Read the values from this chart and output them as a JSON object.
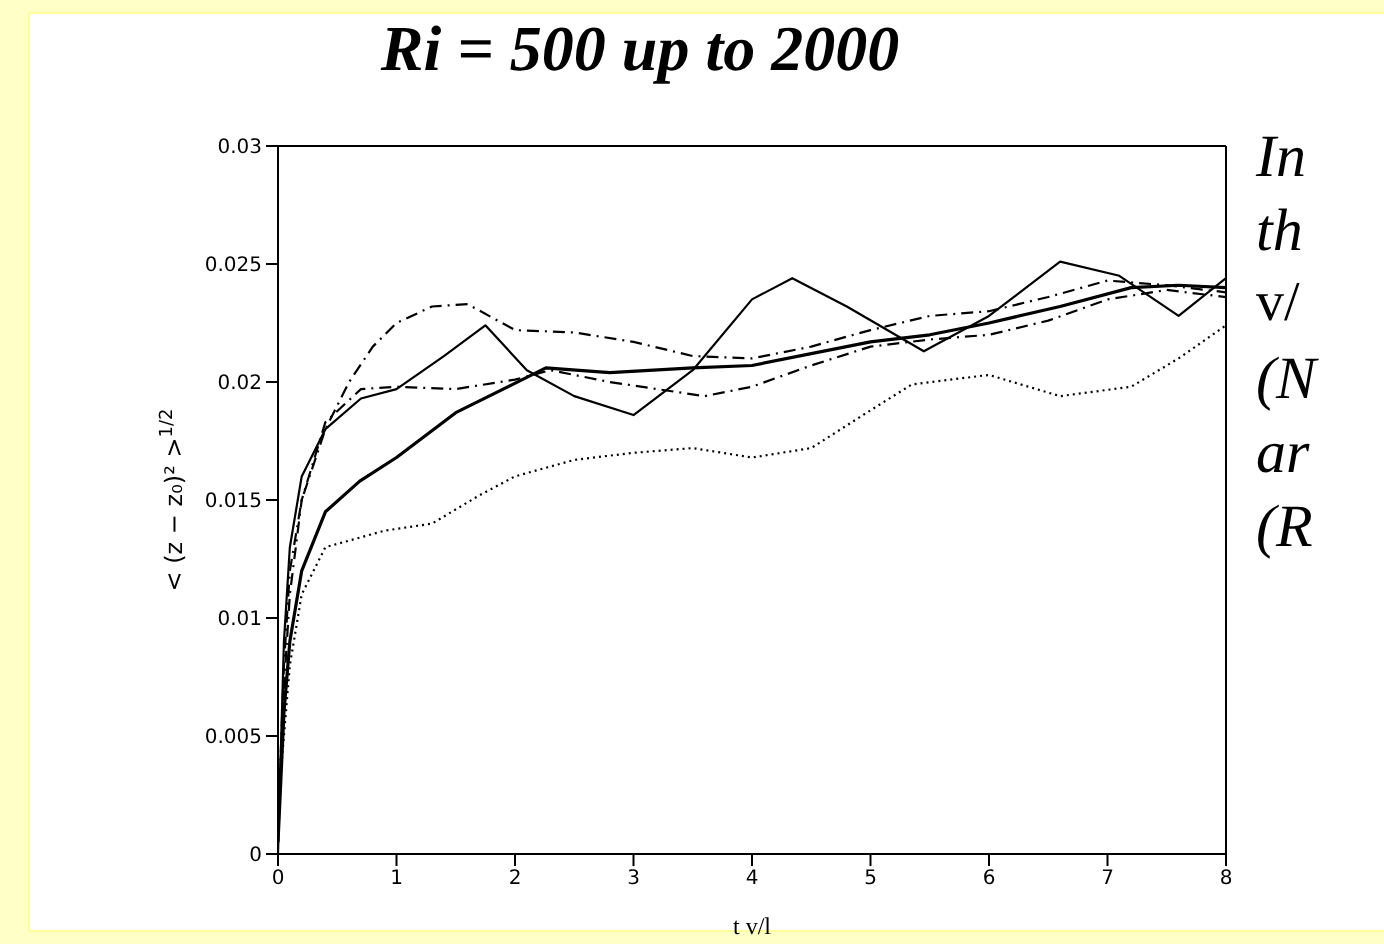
{
  "chart_data": {
    "type": "line",
    "title": "Ri = 500 up to 2000",
    "xlabel": "t v/l",
    "ylabel": "< (z − z₀)² >$^{1/2}$",
    "annotations": [
      "In",
      "th",
      "v/",
      "(N",
      "ar",
      "(R"
    ],
    "xlim": [
      0,
      8
    ],
    "xticks": [
      0,
      1,
      2,
      3,
      4,
      5,
      6,
      7,
      8
    ],
    "ylim": [
      0,
      0.03
    ],
    "yticks": [
      0,
      0.005,
      0.01,
      0.015,
      0.02,
      0.025,
      0.03
    ],
    "marker": "none",
    "series": [
      {
        "color": "#000000",
        "line_style": "dashed",
        "x": [
          0,
          0.05,
          0.1,
          0.2,
          0.4,
          0.6,
          0.8,
          1.0,
          1.3,
          1.6,
          2.0,
          2.5,
          3.0,
          3.5,
          4.0,
          4.5,
          5.0,
          5.5,
          6.0,
          6.5,
          7.0,
          7.5,
          8.0
        ],
        "values": [
          0.001,
          0.008,
          0.012,
          0.015,
          0.018,
          0.02,
          0.0215,
          0.0225,
          0.0232,
          0.0233,
          0.0222,
          0.0221,
          0.0217,
          0.0211,
          0.021,
          0.0215,
          0.0222,
          0.0228,
          0.023,
          0.0236,
          0.0243,
          0.0241,
          0.0238
        ]
      },
      {
        "color": "#000000",
        "line_style": "solid",
        "x": [
          0,
          0.05,
          0.1,
          0.2,
          0.4,
          0.7,
          1.0,
          1.4,
          1.75,
          2.1,
          2.5,
          3.0,
          3.5,
          4.0,
          4.34,
          4.8,
          5.45,
          6.0,
          6.6,
          7.1,
          7.6,
          8.0
        ],
        "values": [
          0,
          0.009,
          0.013,
          0.016,
          0.018,
          0.0193,
          0.0197,
          0.0211,
          0.0224,
          0.0205,
          0.0194,
          0.0186,
          0.0205,
          0.0235,
          0.0244,
          0.0232,
          0.0213,
          0.0228,
          0.0251,
          0.0245,
          0.0228,
          0.0244
        ]
      },
      {
        "color": "#000000",
        "line_style": "solid",
        "x": [
          0,
          0.05,
          0.1,
          0.2,
          0.4,
          0.69,
          1.0,
          1.5,
          2.26,
          2.8,
          3.5,
          4.0,
          4.5,
          5.0,
          5.5,
          6.0,
          6.6,
          7.2,
          7.6,
          8.0
        ],
        "values": [
          0.0005,
          0.006,
          0.009,
          0.012,
          0.0145,
          0.0158,
          0.0168,
          0.0187,
          0.0206,
          0.0204,
          0.0206,
          0.0207,
          0.0212,
          0.0217,
          0.022,
          0.0225,
          0.0232,
          0.024,
          0.0241,
          0.024
        ]
      },
      {
        "color": "#000000",
        "line_style": "dashed",
        "x": [
          0,
          0.05,
          0.1,
          0.2,
          0.4,
          0.7,
          1.0,
          1.5,
          2.0,
          2.3,
          2.8,
          3.2,
          3.6,
          4.0,
          4.5,
          5.0,
          5.5,
          6.0,
          6.5,
          7.0,
          7.5,
          8.0
        ],
        "values": [
          0.0015,
          0.007,
          0.011,
          0.015,
          0.0183,
          0.0197,
          0.0198,
          0.0197,
          0.0201,
          0.0205,
          0.02,
          0.0197,
          0.0194,
          0.0198,
          0.0207,
          0.0215,
          0.0218,
          0.022,
          0.0226,
          0.0235,
          0.0239,
          0.0236
        ]
      },
      {
        "color": "#000000",
        "line_style": "dotted",
        "x": [
          0,
          0.05,
          0.1,
          0.2,
          0.4,
          0.9,
          1.3,
          1.7,
          2.0,
          2.5,
          3.0,
          3.5,
          4.0,
          4.5,
          5.0,
          5.35,
          6.0,
          6.6,
          7.2,
          7.6,
          8.0
        ],
        "values": [
          0.002,
          0.005,
          0.008,
          0.011,
          0.013,
          0.0137,
          0.014,
          0.0152,
          0.016,
          0.0167,
          0.017,
          0.0172,
          0.0168,
          0.0172,
          0.0188,
          0.0199,
          0.0203,
          0.0194,
          0.0198,
          0.021,
          0.0224
        ]
      }
    ]
  }
}
